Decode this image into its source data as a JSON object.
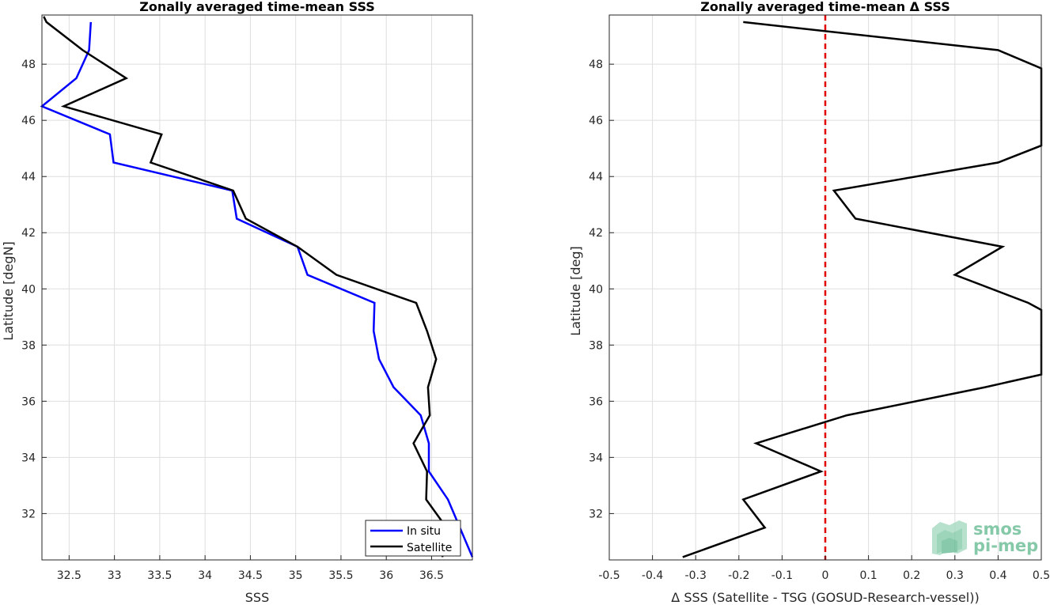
{
  "chart_data": [
    {
      "type": "line",
      "title": "Zonally averaged time-mean SSS",
      "xlabel": "SSS",
      "ylabel": "Latitude [degN]",
      "xlim": [
        32.2,
        36.95
      ],
      "ylim": [
        30.35,
        49.75
      ],
      "xticks": [
        32.5,
        33,
        33.5,
        34,
        34.5,
        35,
        35.5,
        36,
        36.5
      ],
      "xtick_labels": [
        "32.5",
        "33",
        "33.5",
        "34",
        "34.5",
        "35",
        "35.5",
        "36",
        "36.5"
      ],
      "yticks": [
        32,
        34,
        36,
        38,
        40,
        42,
        44,
        46,
        48
      ],
      "ytick_labels": [
        "32",
        "34",
        "36",
        "38",
        "40",
        "42",
        "44",
        "46",
        "48"
      ],
      "grid": true,
      "legend": "bottom-right",
      "series": [
        {
          "name": "In situ",
          "color": "#0000ff",
          "points": [
            [
              32.74,
              49.5
            ],
            [
              32.72,
              48.5
            ],
            [
              32.58,
              47.5
            ],
            [
              32.2,
              46.5
            ],
            [
              32.95,
              45.5
            ],
            [
              32.99,
              44.5
            ],
            [
              34.3,
              43.5
            ],
            [
              34.35,
              42.5
            ],
            [
              35.02,
              41.5
            ],
            [
              35.13,
              40.5
            ],
            [
              35.87,
              39.5
            ],
            [
              35.86,
              38.5
            ],
            [
              35.92,
              37.5
            ],
            [
              36.08,
              36.5
            ],
            [
              36.38,
              35.5
            ],
            [
              36.47,
              34.5
            ],
            [
              36.47,
              33.5
            ],
            [
              36.68,
              32.5
            ],
            [
              36.95,
              30.45
            ]
          ]
        },
        {
          "name": "Satellite",
          "color": "#000000",
          "points": [
            [
              32.22,
              49.7
            ],
            [
              32.25,
              49.5
            ],
            [
              32.65,
              48.5
            ],
            [
              33.13,
              47.5
            ],
            [
              32.44,
              46.5
            ],
            [
              33.52,
              45.5
            ],
            [
              33.4,
              44.5
            ],
            [
              34.31,
              43.5
            ],
            [
              34.45,
              42.5
            ],
            [
              35.02,
              41.5
            ],
            [
              35.45,
              40.5
            ],
            [
              36.33,
              39.5
            ],
            [
              36.45,
              38.5
            ],
            [
              36.55,
              37.5
            ],
            [
              36.46,
              36.5
            ],
            [
              36.48,
              35.5
            ],
            [
              36.3,
              34.5
            ],
            [
              36.45,
              33.5
            ],
            [
              36.44,
              32.5
            ],
            [
              36.62,
              31.7
            ],
            [
              36.62,
              30.45
            ]
          ]
        }
      ]
    },
    {
      "type": "line",
      "title": "Zonally averaged time-mean Δ SSS",
      "xlabel": "Δ SSS (Satellite - TSG (GOSUD-Research-vessel))",
      "ylabel": "Latitude [deg]",
      "xlim": [
        -0.5,
        0.5
      ],
      "ylim": [
        30.35,
        49.75
      ],
      "xticks": [
        -0.5,
        -0.4,
        -0.3,
        -0.2,
        -0.1,
        0,
        0.1,
        0.2,
        0.3,
        0.4,
        0.5
      ],
      "xtick_labels": [
        "-0.5",
        "-0.4",
        "-0.3",
        "-0.2",
        "-0.1",
        "0",
        "0.1",
        "0.2",
        "0.3",
        "0.4",
        "0.5"
      ],
      "yticks": [
        32,
        34,
        36,
        38,
        40,
        42,
        44,
        46,
        48
      ],
      "ytick_labels": [
        "32",
        "34",
        "36",
        "38",
        "40",
        "42",
        "44",
        "46",
        "48"
      ],
      "grid": true,
      "zero_line_color": "#e00000",
      "series": [
        {
          "color": "#000000",
          "points": [
            [
              -0.19,
              49.5
            ],
            [
              0.4,
              48.5
            ],
            [
              0.5,
              47.85
            ],
            [
              0.5,
              45.1
            ],
            [
              0.4,
              44.5
            ],
            [
              0.02,
              43.5
            ],
            [
              0.07,
              42.5
            ],
            [
              0.41,
              41.5
            ],
            [
              0.3,
              40.5
            ],
            [
              0.47,
              39.5
            ],
            [
              0.5,
              39.25
            ],
            [
              0.5,
              36.95
            ],
            [
              0.37,
              36.5
            ],
            [
              0.05,
              35.5
            ],
            [
              -0.16,
              34.5
            ],
            [
              -0.01,
              33.5
            ],
            [
              -0.19,
              32.5
            ],
            [
              -0.14,
              31.5
            ],
            [
              -0.33,
              30.45
            ]
          ]
        }
      ]
    }
  ],
  "legend": {
    "items": [
      {
        "label": "In situ",
        "color": "#0000ff"
      },
      {
        "label": "Satellite",
        "color": "#000000"
      }
    ]
  },
  "logo": {
    "line1": "smos",
    "line2": "pi-mep"
  }
}
